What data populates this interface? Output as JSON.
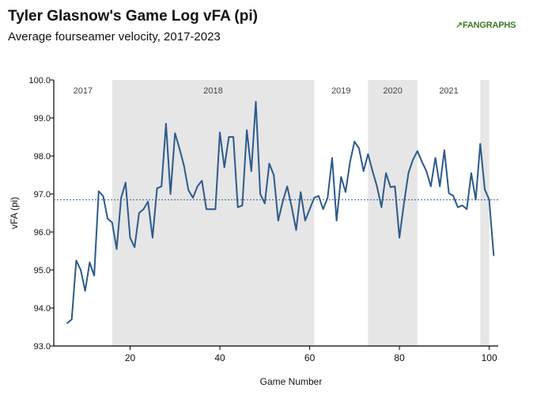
{
  "title": "Tyler Glasnow's Game Log vFA (pi)",
  "subtitle": "Average fourseamer velocity, 2017-2023",
  "logo": {
    "mark": "↗",
    "text": "FANGRAPHS"
  },
  "chart_data": {
    "type": "line",
    "xlabel": "Game Number",
    "ylabel": "vFA (pi)",
    "xlim": [
      3,
      102
    ],
    "ylim": [
      93.0,
      100.0
    ],
    "x_ticks": [
      20,
      40,
      60,
      80,
      100
    ],
    "y_ticks": [
      "93.0",
      "94.0",
      "95.0",
      "96.0",
      "97.0",
      "98.0",
      "99.0",
      "100.0"
    ],
    "reference_line": 96.85,
    "seasons": [
      {
        "label": "2017",
        "start": 3,
        "end": 16,
        "shaded": false
      },
      {
        "label": "2018",
        "start": 16,
        "end": 61,
        "shaded": true
      },
      {
        "label": "2019",
        "start": 61,
        "end": 73,
        "shaded": false
      },
      {
        "label": "2020",
        "start": 73,
        "end": 84,
        "shaded": true
      },
      {
        "label": "2021",
        "start": 84,
        "end": 98,
        "shaded": false
      },
      {
        "label": "",
        "start": 98,
        "end": 100,
        "shaded": true
      }
    ],
    "series": [
      {
        "color": "#2d5a8c",
        "x": [
          6,
          7,
          8,
          9,
          10,
          11,
          12,
          13,
          14,
          15,
          16,
          17,
          18,
          19,
          20,
          21,
          22,
          23,
          24,
          25,
          26,
          27,
          28,
          29,
          30,
          31,
          32,
          33,
          34,
          35,
          36,
          37,
          38,
          39,
          40,
          41,
          42,
          43,
          44,
          45,
          46,
          47,
          48,
          49,
          50,
          51,
          52,
          53,
          54,
          55,
          56,
          57,
          58,
          59,
          60,
          61,
          62,
          63,
          64,
          65,
          66,
          67,
          68,
          69,
          70,
          71,
          72,
          73,
          74,
          75,
          76,
          77,
          78,
          79,
          80,
          81,
          82,
          83,
          84,
          85,
          86,
          87,
          88,
          89,
          90,
          91,
          92,
          93,
          94,
          95,
          96,
          97,
          98,
          99,
          100,
          101
        ],
        "values": [
          93.6,
          93.7,
          95.25,
          95.0,
          94.45,
          95.2,
          94.85,
          97.07,
          96.95,
          96.35,
          96.25,
          95.55,
          96.9,
          97.3,
          95.85,
          95.6,
          96.5,
          96.6,
          96.8,
          95.85,
          97.15,
          97.2,
          98.85,
          97.0,
          98.6,
          98.2,
          97.75,
          97.1,
          96.9,
          97.2,
          97.35,
          96.6,
          96.6,
          96.6,
          98.62,
          97.7,
          98.5,
          98.5,
          96.65,
          96.7,
          98.68,
          97.6,
          99.43,
          97.0,
          96.75,
          97.8,
          97.5,
          96.3,
          96.8,
          97.2,
          96.65,
          96.05,
          97.05,
          96.3,
          96.6,
          96.9,
          96.95,
          96.6,
          96.9,
          97.95,
          96.3,
          97.45,
          97.05,
          97.85,
          98.38,
          98.2,
          97.6,
          98.05,
          97.6,
          97.2,
          96.65,
          97.55,
          97.18,
          97.2,
          95.85,
          96.75,
          97.55,
          97.9,
          98.13,
          97.85,
          97.6,
          97.2,
          97.95,
          97.2,
          98.15,
          97.02,
          96.95,
          96.65,
          96.7,
          96.6,
          97.55,
          96.85,
          98.32,
          97.12,
          96.85,
          95.38
        ]
      }
    ]
  }
}
